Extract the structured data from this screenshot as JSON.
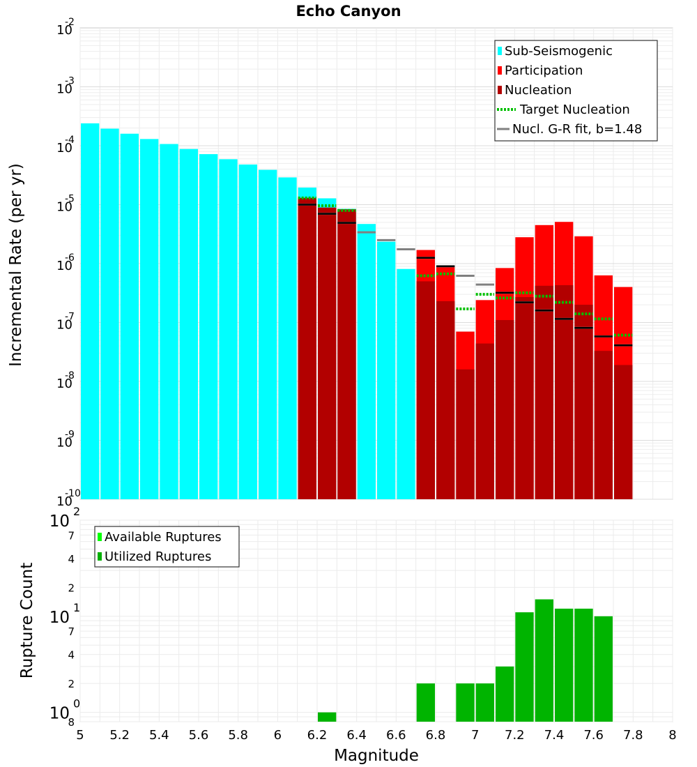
{
  "chart_data": [
    {
      "type": "bar",
      "panel": "top",
      "title": "Echo Canyon",
      "xlabel": "",
      "ylabel": "Incremental Rate (per yr)",
      "yscale": "log",
      "ylim": [
        1e-10,
        0.01
      ],
      "xlim": [
        5.0,
        8.0
      ],
      "bar_width": 0.1,
      "y_ticks": [
        "10",
        "10",
        "10",
        "10",
        "10",
        "10",
        "10",
        "10",
        "10"
      ],
      "y_tick_exponents": [
        "-10",
        "-9",
        "-8",
        "-7",
        "-6",
        "-5",
        "-4",
        "-3",
        "-2"
      ],
      "y_tick_values": [
        1e-10,
        1e-09,
        1e-08,
        1e-07,
        1e-06,
        1e-05,
        0.0001,
        0.001,
        0.01
      ],
      "legend": {
        "position": "top-right",
        "entries": [
          {
            "label": "Sub-Seismogenic",
            "color": "#00ffff",
            "style": "bar"
          },
          {
            "label": "Participation",
            "color": "#ff0000",
            "style": "bar"
          },
          {
            "label": "Nucleation",
            "color": "#b20000",
            "style": "bar"
          },
          {
            "label": "Target Nucleation",
            "color": "#00c000",
            "style": "dotted"
          },
          {
            "label": "Nucl. G-R fit, b=1.48",
            "color": "#808080",
            "style": "line"
          }
        ]
      },
      "series": [
        {
          "name": "Sub-Seismogenic",
          "color": "#00ffff",
          "x": [
            5.05,
            5.15,
            5.25,
            5.35,
            5.45,
            5.55,
            5.65,
            5.75,
            5.85,
            5.95,
            6.05,
            6.15,
            6.25,
            6.35,
            6.45,
            6.55,
            6.65
          ],
          "values": [
            0.00024,
            0.000195,
            0.00016,
            0.00013,
            0.000107,
            8.8e-05,
            7.2e-05,
            5.9e-05,
            4.8e-05,
            3.9e-05,
            2.9e-05,
            1.95e-05,
            1.28e-05,
            8.5e-06,
            4.7e-06,
            2.35e-06,
            8.1e-07
          ]
        },
        {
          "name": "Participation",
          "color": "#ff0000",
          "x": [
            6.15,
            6.25,
            6.35,
            6.75,
            6.85,
            6.95,
            7.05,
            7.15,
            7.25,
            7.35,
            7.45,
            7.55,
            7.65,
            7.75
          ],
          "values": [
            1.3e-05,
            8.9e-06,
            8.3e-06,
            1.7e-06,
            8.7e-07,
            7e-08,
            2.4e-07,
            8.4e-07,
            2.8e-06,
            4.5e-06,
            5.1e-06,
            2.9e-06,
            6.3e-07,
            4e-07
          ]
        },
        {
          "name": "Nucleation",
          "color": "#b20000",
          "x": [
            6.15,
            6.25,
            6.35,
            6.75,
            6.85,
            6.95,
            7.05,
            7.15,
            7.25,
            7.35,
            7.45,
            7.55,
            7.65,
            7.75
          ],
          "values": [
            1.3e-05,
            8.9e-06,
            8.3e-06,
            5e-07,
            2.3e-07,
            1.6e-08,
            4.4e-08,
            1.1e-07,
            2.7e-07,
            4.2e-07,
            4.3e-07,
            2e-07,
            3.3e-08,
            1.9e-08
          ]
        },
        {
          "name": "Target Nucleation",
          "color": "#00c000",
          "x": [
            6.15,
            6.25,
            6.35,
            6.75,
            6.85,
            6.95,
            7.05,
            7.15,
            7.25,
            7.35,
            7.45,
            7.55,
            7.65,
            7.75
          ],
          "values": [
            1.3e-05,
            9.6e-06,
            8e-06,
            6.2e-07,
            6.7e-07,
            1.7e-07,
            3e-07,
            2.6e-07,
            3.2e-07,
            2.8e-07,
            2.2e-07,
            1.4e-07,
            1.15e-07,
            6.1e-08
          ]
        },
        {
          "name": "Nucl. G-R fit, b=1.48",
          "color": "#808080",
          "x": [
            6.15,
            6.25,
            6.35,
            6.45,
            6.55,
            6.65,
            6.75,
            6.85,
            6.95,
            7.05,
            7.15,
            7.25,
            7.35,
            7.45,
            7.55,
            7.65,
            7.75
          ],
          "values": [
            1e-05,
            7e-06,
            4.9e-06,
            3.4e-06,
            2.5e-06,
            1.75e-06,
            1.25e-06,
            9e-07,
            6.2e-07,
            4.4e-07,
            3.2e-07,
            2.2e-07,
            1.6e-07,
            1.15e-07,
            8.1e-08,
            5.8e-08,
            4.1e-08
          ]
        },
        {
          "name": "Nucleation fit marks",
          "color": "#000000",
          "x": [
            6.15,
            6.25,
            6.35,
            6.75,
            6.85,
            7.15,
            7.25,
            7.35,
            7.45,
            7.55,
            7.65,
            7.75
          ],
          "values": [
            1e-05,
            7e-06,
            4.9e-06,
            1.25e-06,
            9e-07,
            3.2e-07,
            2.2e-07,
            1.6e-07,
            1.15e-07,
            8.1e-08,
            5.8e-08,
            4.1e-08
          ]
        }
      ]
    },
    {
      "type": "bar",
      "panel": "bottom",
      "xlabel": "Magnitude",
      "ylabel": "Rupture Count",
      "yscale": "log",
      "ylim": [
        0.8,
        100
      ],
      "xlim": [
        5.0,
        8.0
      ],
      "bar_width": 0.1,
      "x_ticks": [
        "5",
        "5.2",
        "5.4",
        "5.6",
        "5.8",
        "6",
        "6.2",
        "6.4",
        "6.6",
        "6.8",
        "7",
        "7.2",
        "7.4",
        "7.6",
        "7.8",
        "8"
      ],
      "y_major_ticks": [
        {
          "base": "10",
          "exp": "0",
          "value": 1
        },
        {
          "base": "10",
          "exp": "1",
          "value": 10
        },
        {
          "base": "10",
          "exp": "2",
          "value": 100
        }
      ],
      "y_minor_labels": [
        {
          "label": "8",
          "value": 0.8
        },
        {
          "label": "2",
          "value": 2
        },
        {
          "label": "4",
          "value": 4
        },
        {
          "label": "7",
          "value": 7
        },
        {
          "label": "2",
          "value": 20
        },
        {
          "label": "4",
          "value": 40
        },
        {
          "label": "7",
          "value": 70
        }
      ],
      "legend": {
        "position": "top-left",
        "entries": [
          {
            "label": "Available Ruptures",
            "color": "#00ff00",
            "style": "bar"
          },
          {
            "label": "Utilized Ruptures",
            "color": "#00b000",
            "style": "bar"
          }
        ]
      },
      "series": [
        {
          "name": "Utilized Ruptures",
          "color": "#00b400",
          "x": [
            6.25,
            6.75,
            6.95,
            7.05,
            7.15,
            7.25,
            7.35,
            7.45,
            7.55,
            7.65
          ],
          "values": [
            1,
            2,
            2,
            2,
            3,
            11,
            15,
            12,
            12,
            10
          ]
        }
      ]
    }
  ]
}
